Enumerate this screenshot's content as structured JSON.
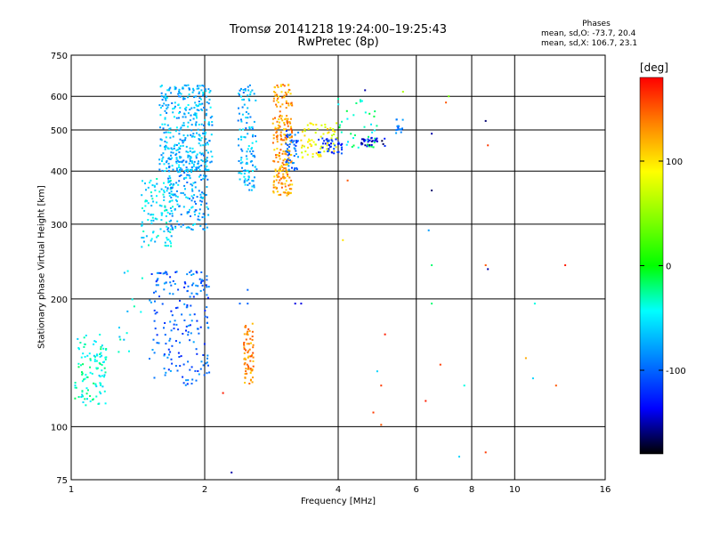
{
  "header": {
    "title": "Tromsø 20141218  19:24:00–19:25:43",
    "subtitle": "RwPretec (8p)"
  },
  "phase_box": {
    "title": "Phases",
    "line1": "mean, sd,O: -73.7, 20.4",
    "line2": "mean, sd,X: 106.7, 23.1"
  },
  "colorbar": {
    "unit": "[deg]",
    "ticks": [
      "100",
      "0",
      "-100"
    ],
    "min": -180,
    "max": 180
  },
  "chart_data": {
    "type": "scatter",
    "title": "Tromsø 20141218  19:24:00–19:25:43",
    "subtitle": "RwPretec (8p)",
    "xlabel": "Frequency [MHz]",
    "ylabel": "Stationary phase Virtual Height [km]",
    "x_scale": "log",
    "y_scale": "log",
    "xlim": [
      1,
      16
    ],
    "ylim": [
      75,
      750
    ],
    "xticks": [
      "1",
      "2",
      "4",
      "6",
      "8",
      "10",
      "16"
    ],
    "yticks": [
      "75",
      "100",
      "200",
      "300",
      "400",
      "500",
      "600",
      "750"
    ],
    "grid": true,
    "color_by": "phase [deg]",
    "clusters": [
      {
        "x": [
          1.02,
          1.2
        ],
        "y": [
          112,
          165
        ],
        "phase": -40,
        "n": 110
      },
      {
        "x": [
          1.27,
          1.45
        ],
        "y": [
          148,
          250
        ],
        "phase": -50,
        "n": 14
      },
      {
        "x": [
          1.44,
          1.7
        ],
        "y": [
          265,
          385
        ],
        "phase": -55,
        "n": 110
      },
      {
        "x": [
          1.65,
          2.05
        ],
        "y": [
          290,
          450
        ],
        "phase": -75,
        "n": 190
      },
      {
        "x": [
          1.58,
          2.08
        ],
        "y": [
          400,
          640
        ],
        "phase": -70,
        "n": 330
      },
      {
        "x": [
          1.5,
          2.05
        ],
        "y": [
          125,
          235
        ],
        "phase": -100,
        "n": 190
      },
      {
        "x": [
          2.38,
          2.62
        ],
        "y": [
          360,
          640
        ],
        "phase": -72,
        "n": 120
      },
      {
        "x": [
          2.45,
          2.58
        ],
        "y": [
          125,
          175
        ],
        "phase": 130,
        "n": 70
      },
      {
        "x": [
          2.85,
          3.15
        ],
        "y": [
          350,
          640
        ],
        "phase": 125,
        "n": 230
      },
      {
        "x": [
          3.05,
          3.25
        ],
        "y": [
          400,
          500
        ],
        "phase": -100,
        "n": 50
      },
      {
        "x": [
          3.3,
          4.0
        ],
        "y": [
          430,
          520
        ],
        "phase": 90,
        "n": 70
      },
      {
        "x": [
          3.6,
          4.1
        ],
        "y": [
          440,
          480
        ],
        "phase": -120,
        "n": 40
      },
      {
        "x": [
          4.0,
          4.9
        ],
        "y": [
          450,
          600
        ],
        "phase": -30,
        "n": 40
      },
      {
        "x": [
          4.5,
          5.1
        ],
        "y": [
          455,
          480
        ],
        "phase": -145,
        "n": 30
      },
      {
        "x": [
          5.4,
          5.6
        ],
        "y": [
          490,
          530
        ],
        "phase": -90,
        "n": 15
      }
    ],
    "points": [
      {
        "x": 3.2,
        "y": 195,
        "phase": -140
      },
      {
        "x": 3.3,
        "y": 195,
        "phase": -140
      },
      {
        "x": 2.4,
        "y": 195,
        "phase": -100
      },
      {
        "x": 2.5,
        "y": 195,
        "phase": -100
      },
      {
        "x": 2.5,
        "y": 210,
        "phase": -100
      },
      {
        "x": 2.2,
        "y": 120,
        "phase": 170
      },
      {
        "x": 2.3,
        "y": 78,
        "phase": -150
      },
      {
        "x": 4.1,
        "y": 275,
        "phase": 100
      },
      {
        "x": 4.2,
        "y": 380,
        "phase": 150
      },
      {
        "x": 4.9,
        "y": 135,
        "phase": -60
      },
      {
        "x": 5.0,
        "y": 125,
        "phase": 160
      },
      {
        "x": 4.8,
        "y": 108,
        "phase": 160
      },
      {
        "x": 5.1,
        "y": 165,
        "phase": 170
      },
      {
        "x": 5.0,
        "y": 101,
        "phase": 150
      },
      {
        "x": 4.6,
        "y": 620,
        "phase": -150
      },
      {
        "x": 5.6,
        "y": 615,
        "phase": 60
      },
      {
        "x": 6.5,
        "y": 360,
        "phase": -160
      },
      {
        "x": 6.4,
        "y": 290,
        "phase": -80
      },
      {
        "x": 6.5,
        "y": 240,
        "phase": -20
      },
      {
        "x": 6.5,
        "y": 195,
        "phase": -20
      },
      {
        "x": 6.3,
        "y": 115,
        "phase": 170
      },
      {
        "x": 6.5,
        "y": 490,
        "phase": -150
      },
      {
        "x": 6.8,
        "y": 140,
        "phase": 160
      },
      {
        "x": 7.0,
        "y": 580,
        "phase": 150
      },
      {
        "x": 7.5,
        "y": 85,
        "phase": -60
      },
      {
        "x": 7.7,
        "y": 125,
        "phase": -40
      },
      {
        "x": 8.6,
        "y": 240,
        "phase": 150
      },
      {
        "x": 8.7,
        "y": 235,
        "phase": -150
      },
      {
        "x": 8.6,
        "y": 525,
        "phase": -160
      },
      {
        "x": 8.7,
        "y": 460,
        "phase": 160
      },
      {
        "x": 8.6,
        "y": 87,
        "phase": 160
      },
      {
        "x": 10.6,
        "y": 145,
        "phase": 120
      },
      {
        "x": 11.1,
        "y": 195,
        "phase": -40
      },
      {
        "x": 11.0,
        "y": 130,
        "phase": -60
      },
      {
        "x": 12.4,
        "y": 125,
        "phase": 150
      },
      {
        "x": 13.0,
        "y": 240,
        "phase": 170
      },
      {
        "x": 7.1,
        "y": 600,
        "phase": 40
      }
    ]
  }
}
